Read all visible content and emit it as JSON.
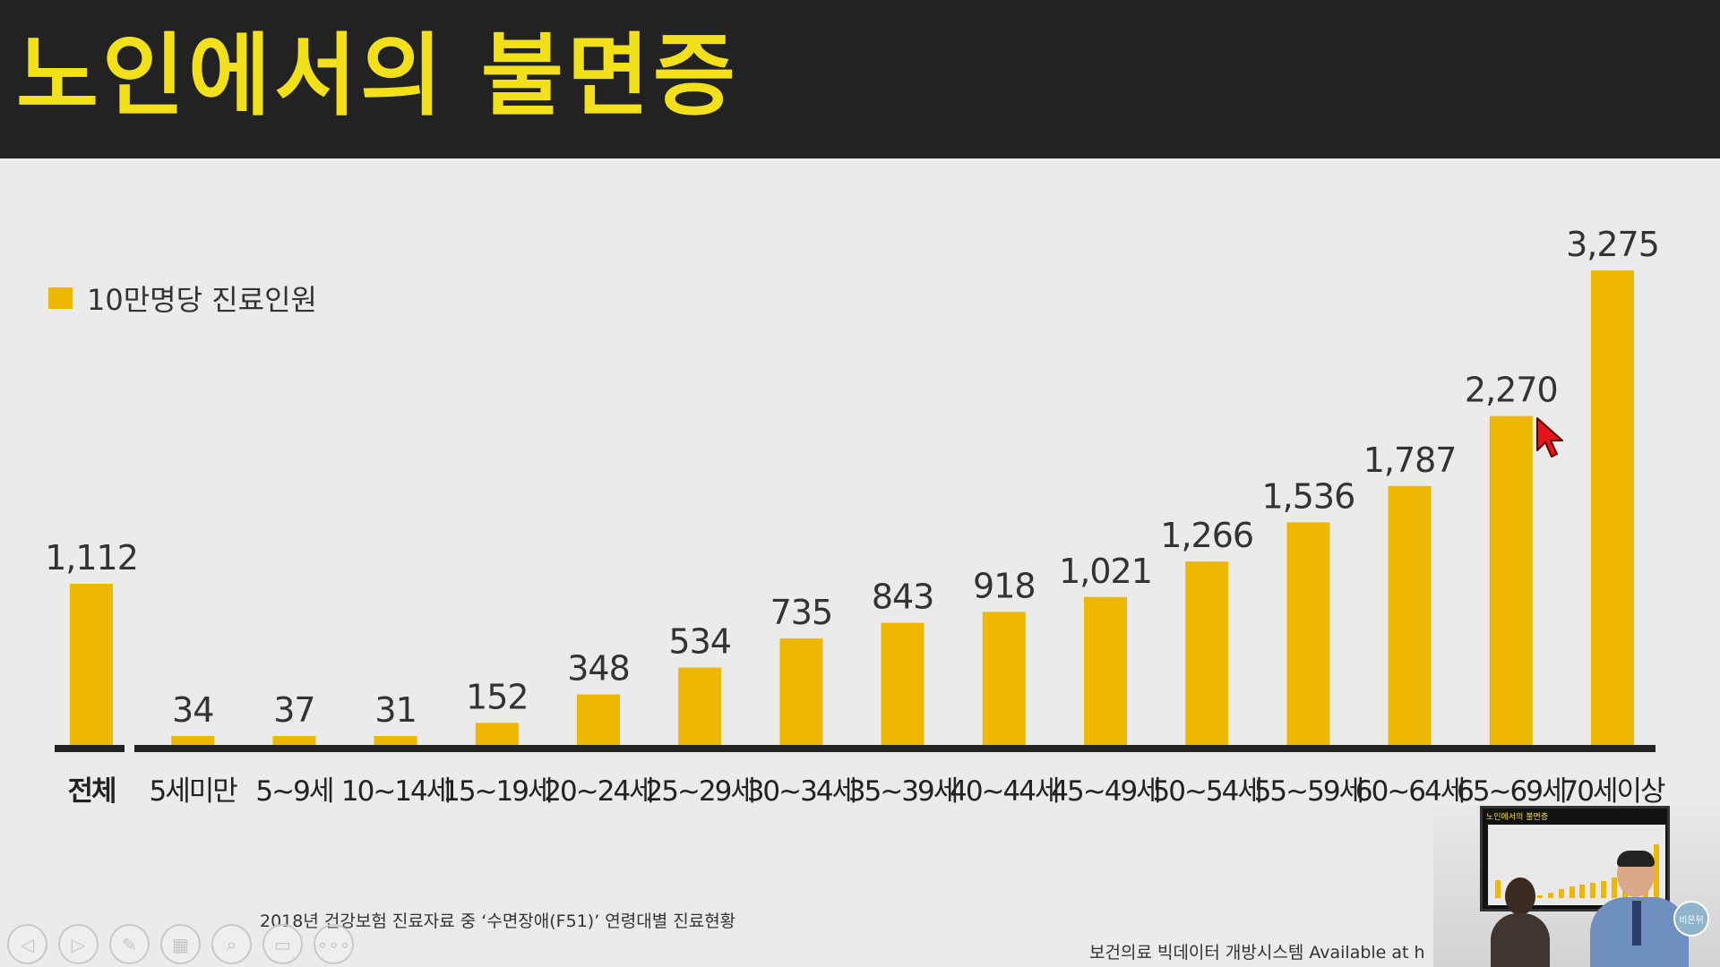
{
  "slide": {
    "title": "노인에서의 불면증",
    "footnote": "2018년 건강보험 진료자료 중 ‘수면장애(F51)’ 연령대별 진료현황",
    "source": "보건의료 빅데이터 개방시스템 Available at h"
  },
  "legend": {
    "label": "10만명당 진료인원"
  },
  "colors": {
    "bar": "#efb800",
    "title": "#f2e11a",
    "header_bg": "#222222",
    "background": "#ebebeb",
    "axis": "#222222"
  },
  "chart_data": {
    "type": "bar",
    "title": "",
    "xlabel": "",
    "ylabel": "",
    "ylim": [
      0,
      3275
    ],
    "grid": false,
    "legend": "top-left",
    "series": [
      {
        "name": "10만명당 진료인원",
        "values": [
          1112,
          34,
          37,
          31,
          152,
          348,
          534,
          735,
          843,
          918,
          1021,
          1266,
          1536,
          1787,
          2270,
          3275
        ],
        "labels": [
          "1,112",
          "34",
          "37",
          "31",
          "152",
          "348",
          "534",
          "735",
          "843",
          "918",
          "1,021",
          "1,266",
          "1,536",
          "1,787",
          "2,270",
          "3,275"
        ]
      }
    ],
    "categories": [
      "전체",
      "5세미만",
      "5~9세",
      "10~14세",
      "15~19세",
      "20~24세",
      "25~29세",
      "30~34세",
      "35~39세",
      "40~44세",
      "45~49세",
      "50~54세",
      "55~59세",
      "60~64세",
      "65~69세",
      "70세이상"
    ]
  },
  "player": {
    "icons": [
      "prev-icon",
      "next-icon",
      "pen-icon",
      "slides-icon",
      "zoom-icon",
      "subtitle-icon",
      "more-icon"
    ],
    "glyphs": [
      "◁",
      "▷",
      "✎",
      "▦",
      "⌕",
      "▭",
      "∘∘∘"
    ]
  },
  "pip": {
    "screen_title": "노인에서의 불면증",
    "logo_text": "비온뒤",
    "mini_values": [
      1112,
      34,
      37,
      31,
      152,
      348,
      534,
      735,
      843,
      918,
      1021,
      1266,
      1536,
      1787,
      2270,
      3275
    ]
  }
}
